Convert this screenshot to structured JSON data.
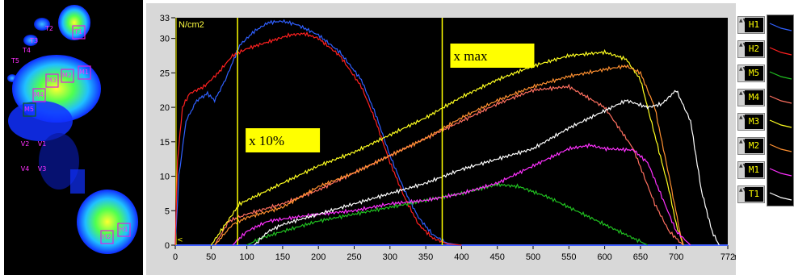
{
  "foot_labels": [
    "T1",
    "T2",
    "T3",
    "T4",
    "T5",
    "M1",
    "M2",
    "M3",
    "M4",
    "M5",
    "H1",
    "H2",
    "V1",
    "V2",
    "V3",
    "V4"
  ],
  "chart_data": {
    "type": "line",
    "ylabel": "N/cm2",
    "xlabel": "ms",
    "xlim": [
      0,
      772
    ],
    "ylim": [
      0,
      33
    ],
    "x_ticks": [
      "0",
      "50",
      "100",
      "150",
      "200",
      "250",
      "300",
      "350",
      "400",
      "450",
      "500",
      "550",
      "600",
      "650",
      "700",
      "772"
    ],
    "x_tick_values": [
      0,
      50,
      100,
      150,
      200,
      250,
      300,
      350,
      400,
      450,
      500,
      550,
      600,
      650,
      700,
      772
    ],
    "y_ticks": [
      "0",
      "5",
      "10",
      "15",
      "20",
      "25",
      "30",
      "33"
    ],
    "y_tick_values": [
      0,
      5,
      10,
      15,
      20,
      25,
      30,
      33
    ],
    "grid": false,
    "background": "#000000",
    "annotations": [
      {
        "text": "x 10%",
        "x": 87
      },
      {
        "text": "x max",
        "x": 373
      }
    ],
    "series": [
      {
        "name": "H1",
        "color": "#3060ff",
        "points": [
          [
            0,
            0
          ],
          [
            5,
            10
          ],
          [
            15,
            18
          ],
          [
            30,
            21
          ],
          [
            45,
            22
          ],
          [
            55,
            21
          ],
          [
            70,
            24
          ],
          [
            90,
            29
          ],
          [
            110,
            31
          ],
          [
            130,
            32.3
          ],
          [
            150,
            32.5
          ],
          [
            170,
            32
          ],
          [
            200,
            30.5
          ],
          [
            230,
            28
          ],
          [
            260,
            24
          ],
          [
            280,
            19
          ],
          [
            300,
            13
          ],
          [
            320,
            8
          ],
          [
            340,
            4
          ],
          [
            360,
            1.5
          ],
          [
            380,
            0.3
          ],
          [
            400,
            0
          ]
        ]
      },
      {
        "name": "H2",
        "color": "#ff2020",
        "points": [
          [
            0,
            0
          ],
          [
            3,
            12
          ],
          [
            10,
            20
          ],
          [
            20,
            22
          ],
          [
            40,
            23
          ],
          [
            60,
            25
          ],
          [
            80,
            27.5
          ],
          [
            100,
            28.5
          ],
          [
            130,
            29.5
          ],
          [
            160,
            30.5
          ],
          [
            180,
            30.7
          ],
          [
            200,
            30
          ],
          [
            230,
            27.5
          ],
          [
            260,
            23
          ],
          [
            280,
            18
          ],
          [
            300,
            12
          ],
          [
            320,
            7
          ],
          [
            340,
            3
          ],
          [
            360,
            1
          ],
          [
            380,
            0.2
          ],
          [
            400,
            0
          ]
        ]
      },
      {
        "name": "M5",
        "color": "#20c020",
        "points": [
          [
            100,
            0
          ],
          [
            120,
            1
          ],
          [
            150,
            2
          ],
          [
            200,
            3.5
          ],
          [
            250,
            4.5
          ],
          [
            300,
            5.5
          ],
          [
            350,
            6.5
          ],
          [
            400,
            7.5
          ],
          [
            450,
            8.8
          ],
          [
            480,
            8.5
          ],
          [
            520,
            7
          ],
          [
            560,
            5
          ],
          [
            600,
            3
          ],
          [
            630,
            1.5
          ],
          [
            660,
            0
          ]
        ]
      },
      {
        "name": "M4",
        "color": "#ff7060",
        "points": [
          [
            55,
            0
          ],
          [
            75,
            3.5
          ],
          [
            100,
            4.5
          ],
          [
            150,
            6
          ],
          [
            200,
            8
          ],
          [
            250,
            10.5
          ],
          [
            300,
            13
          ],
          [
            350,
            15.5
          ],
          [
            400,
            18
          ],
          [
            450,
            20.5
          ],
          [
            500,
            22.5
          ],
          [
            550,
            23
          ],
          [
            600,
            20
          ],
          [
            640,
            14
          ],
          [
            670,
            6
          ],
          [
            690,
            2
          ],
          [
            710,
            0
          ]
        ]
      },
      {
        "name": "M3",
        "color": "#ffff20",
        "points": [
          [
            50,
            0
          ],
          [
            70,
            3
          ],
          [
            90,
            6
          ],
          [
            120,
            7.5
          ],
          [
            150,
            9
          ],
          [
            200,
            11.5
          ],
          [
            250,
            13.5
          ],
          [
            300,
            16
          ],
          [
            350,
            18.5
          ],
          [
            400,
            21.5
          ],
          [
            450,
            24
          ],
          [
            500,
            26
          ],
          [
            550,
            27.5
          ],
          [
            600,
            28
          ],
          [
            630,
            27
          ],
          [
            650,
            24
          ],
          [
            670,
            16
          ],
          [
            690,
            8
          ],
          [
            700,
            3
          ],
          [
            710,
            0
          ]
        ]
      },
      {
        "name": "M2",
        "color": "#ff9030",
        "points": [
          [
            55,
            0
          ],
          [
            80,
            3
          ],
          [
            100,
            4
          ],
          [
            150,
            5.5
          ],
          [
            200,
            8.5
          ],
          [
            250,
            10.5
          ],
          [
            300,
            13
          ],
          [
            350,
            15.5
          ],
          [
            400,
            18.5
          ],
          [
            450,
            21
          ],
          [
            500,
            23
          ],
          [
            550,
            24.5
          ],
          [
            600,
            25.5
          ],
          [
            630,
            26
          ],
          [
            650,
            25
          ],
          [
            670,
            20
          ],
          [
            690,
            10
          ],
          [
            705,
            2
          ],
          [
            710,
            0
          ]
        ]
      },
      {
        "name": "M1",
        "color": "#ff30ff",
        "points": [
          [
            80,
            0
          ],
          [
            100,
            2
          ],
          [
            130,
            3.5
          ],
          [
            200,
            4.5
          ],
          [
            250,
            5
          ],
          [
            300,
            6
          ],
          [
            350,
            6.5
          ],
          [
            400,
            7.5
          ],
          [
            450,
            9
          ],
          [
            500,
            11.5
          ],
          [
            550,
            14
          ],
          [
            580,
            14.5
          ],
          [
            600,
            14
          ],
          [
            640,
            13.8
          ],
          [
            660,
            12
          ],
          [
            680,
            7
          ],
          [
            700,
            2
          ],
          [
            720,
            0
          ]
        ]
      },
      {
        "name": "T1",
        "color": "#ffffff",
        "points": [
          [
            110,
            0
          ],
          [
            130,
            2
          ],
          [
            150,
            3
          ],
          [
            200,
            4.5
          ],
          [
            250,
            6
          ],
          [
            300,
            7.5
          ],
          [
            350,
            9
          ],
          [
            400,
            11
          ],
          [
            450,
            12.5
          ],
          [
            500,
            14
          ],
          [
            550,
            17
          ],
          [
            600,
            19.5
          ],
          [
            630,
            21
          ],
          [
            660,
            20
          ],
          [
            680,
            20.5
          ],
          [
            700,
            22.5
          ],
          [
            720,
            18
          ],
          [
            735,
            8
          ],
          [
            750,
            2
          ],
          [
            760,
            0
          ]
        ]
      }
    ]
  }
}
